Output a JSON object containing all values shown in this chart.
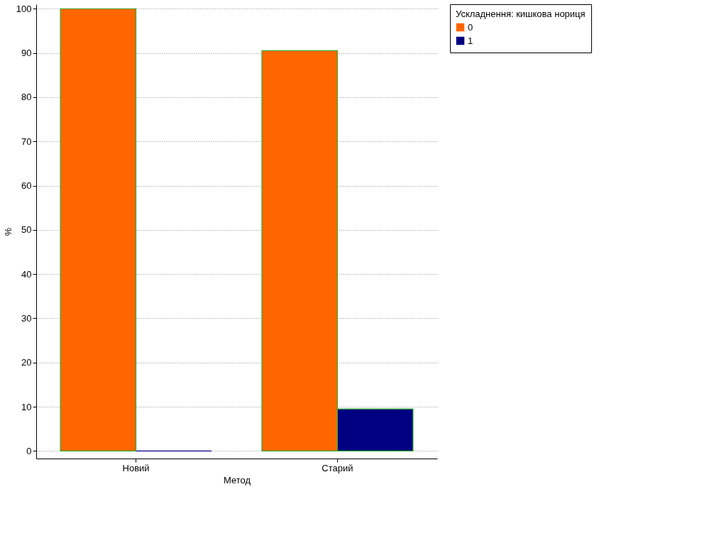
{
  "chart_data": {
    "type": "bar",
    "categories": [
      "Новий",
      "Старий"
    ],
    "series": [
      {
        "name": "0",
        "color": "#ff6600",
        "values": [
          100,
          90.5
        ]
      },
      {
        "name": "1",
        "color": "#000080",
        "values": [
          0,
          9.5
        ]
      }
    ],
    "xlabel": "Метод",
    "ylabel": "%",
    "legend_title": "Ускладнення: кишкова нориця",
    "ylim": [
      -1.7,
      101
    ],
    "yticks": [
      0,
      10,
      20,
      30,
      40,
      50,
      60,
      70,
      80,
      90,
      100
    ],
    "grid": "y",
    "legend": "right"
  }
}
